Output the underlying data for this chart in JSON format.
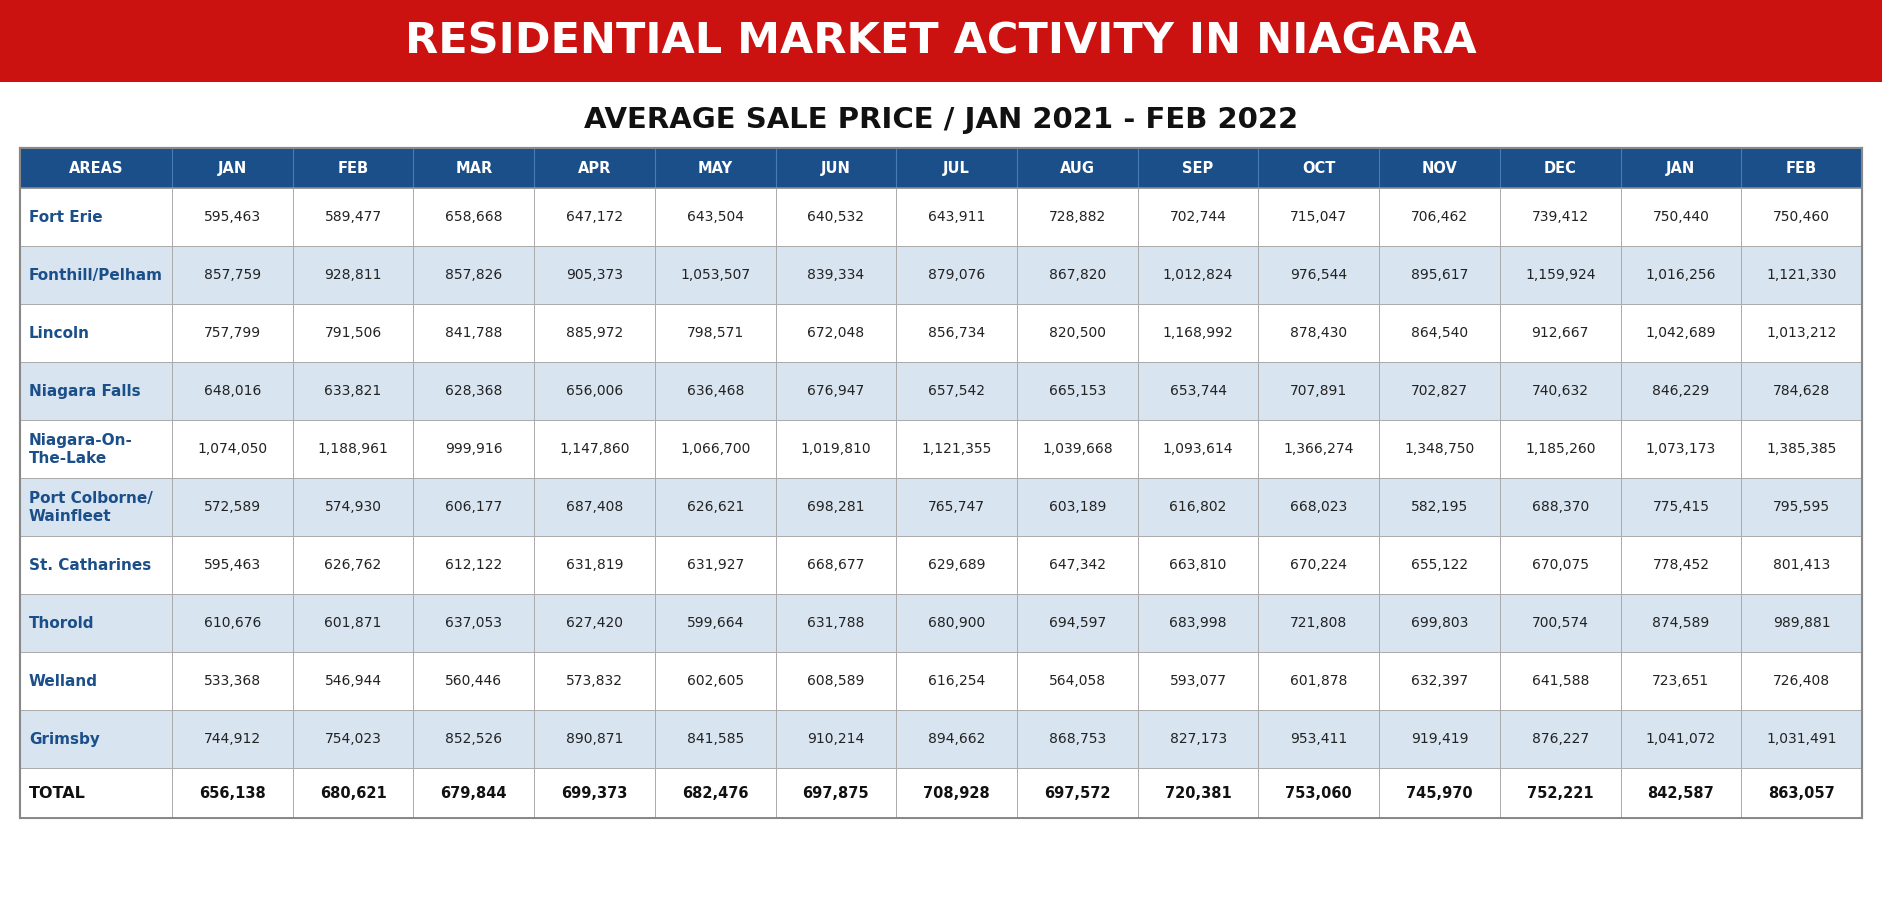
{
  "title": "RESIDENTIAL MARKET ACTIVITY IN NIAGARA",
  "subtitle": "AVERAGE SALE PRICE / JAN 2021 - FEB 2022",
  "title_bg_color": "#CC1111",
  "title_text_color": "#FFFFFF",
  "subtitle_text_color": "#111111",
  "header_bg_color": "#1B4F8A",
  "header_text_color": "#FFFFFF",
  "col_headers": [
    "AREAS",
    "JAN",
    "FEB",
    "MAR",
    "APR",
    "MAY",
    "JUN",
    "JUL",
    "AUG",
    "SEP",
    "OCT",
    "NOV",
    "DEC",
    "JAN",
    "FEB"
  ],
  "area_text_color": "#1B4F8A",
  "total_text_color": "#111111",
  "row_bg_even": "#FFFFFF",
  "row_bg_odd": "#D8E4F0",
  "grid_color": "#AAAAAA",
  "outer_border_color": "#888888",
  "rows": [
    [
      "Fort Erie",
      "595,463",
      "589,477",
      "658,668",
      "647,172",
      "643,504",
      "640,532",
      "643,911",
      "728,882",
      "702,744",
      "715,047",
      "706,462",
      "739,412",
      "750,440",
      "750,460"
    ],
    [
      "Fonthill/Pelham",
      "857,759",
      "928,811",
      "857,826",
      "905,373",
      "1,053,507",
      "839,334",
      "879,076",
      "867,820",
      "1,012,824",
      "976,544",
      "895,617",
      "1,159,924",
      "1,016,256",
      "1,121,330"
    ],
    [
      "Lincoln",
      "757,799",
      "791,506",
      "841,788",
      "885,972",
      "798,571",
      "672,048",
      "856,734",
      "820,500",
      "1,168,992",
      "878,430",
      "864,540",
      "912,667",
      "1,042,689",
      "1,013,212"
    ],
    [
      "Niagara Falls",
      "648,016",
      "633,821",
      "628,368",
      "656,006",
      "636,468",
      "676,947",
      "657,542",
      "665,153",
      "653,744",
      "707,891",
      "702,827",
      "740,632",
      "846,229",
      "784,628"
    ],
    [
      "Niagara-On-\nThe-Lake",
      "1,074,050",
      "1,188,961",
      "999,916",
      "1,147,860",
      "1,066,700",
      "1,019,810",
      "1,121,355",
      "1,039,668",
      "1,093,614",
      "1,366,274",
      "1,348,750",
      "1,185,260",
      "1,073,173",
      "1,385,385"
    ],
    [
      "Port Colborne/\nWainfleet",
      "572,589",
      "574,930",
      "606,177",
      "687,408",
      "626,621",
      "698,281",
      "765,747",
      "603,189",
      "616,802",
      "668,023",
      "582,195",
      "688,370",
      "775,415",
      "795,595"
    ],
    [
      "St. Catharines",
      "595,463",
      "626,762",
      "612,122",
      "631,819",
      "631,927",
      "668,677",
      "629,689",
      "647,342",
      "663,810",
      "670,224",
      "655,122",
      "670,075",
      "778,452",
      "801,413"
    ],
    [
      "Thorold",
      "610,676",
      "601,871",
      "637,053",
      "627,420",
      "599,664",
      "631,788",
      "680,900",
      "694,597",
      "683,998",
      "721,808",
      "699,803",
      "700,574",
      "874,589",
      "989,881"
    ],
    [
      "Welland",
      "533,368",
      "546,944",
      "560,446",
      "573,832",
      "602,605",
      "608,589",
      "616,254",
      "564,058",
      "593,077",
      "601,878",
      "632,397",
      "641,588",
      "723,651",
      "726,408"
    ],
    [
      "Grimsby",
      "744,912",
      "754,023",
      "852,526",
      "890,871",
      "841,585",
      "910,214",
      "894,662",
      "868,753",
      "827,173",
      "953,411",
      "919,419",
      "876,227",
      "1,041,072",
      "1,031,491"
    ],
    [
      "TOTAL",
      "656,138",
      "680,621",
      "679,844",
      "699,373",
      "682,476",
      "697,875",
      "708,928",
      "697,572",
      "720,381",
      "753,060",
      "745,970",
      "752,221",
      "842,587",
      "863,057"
    ]
  ]
}
